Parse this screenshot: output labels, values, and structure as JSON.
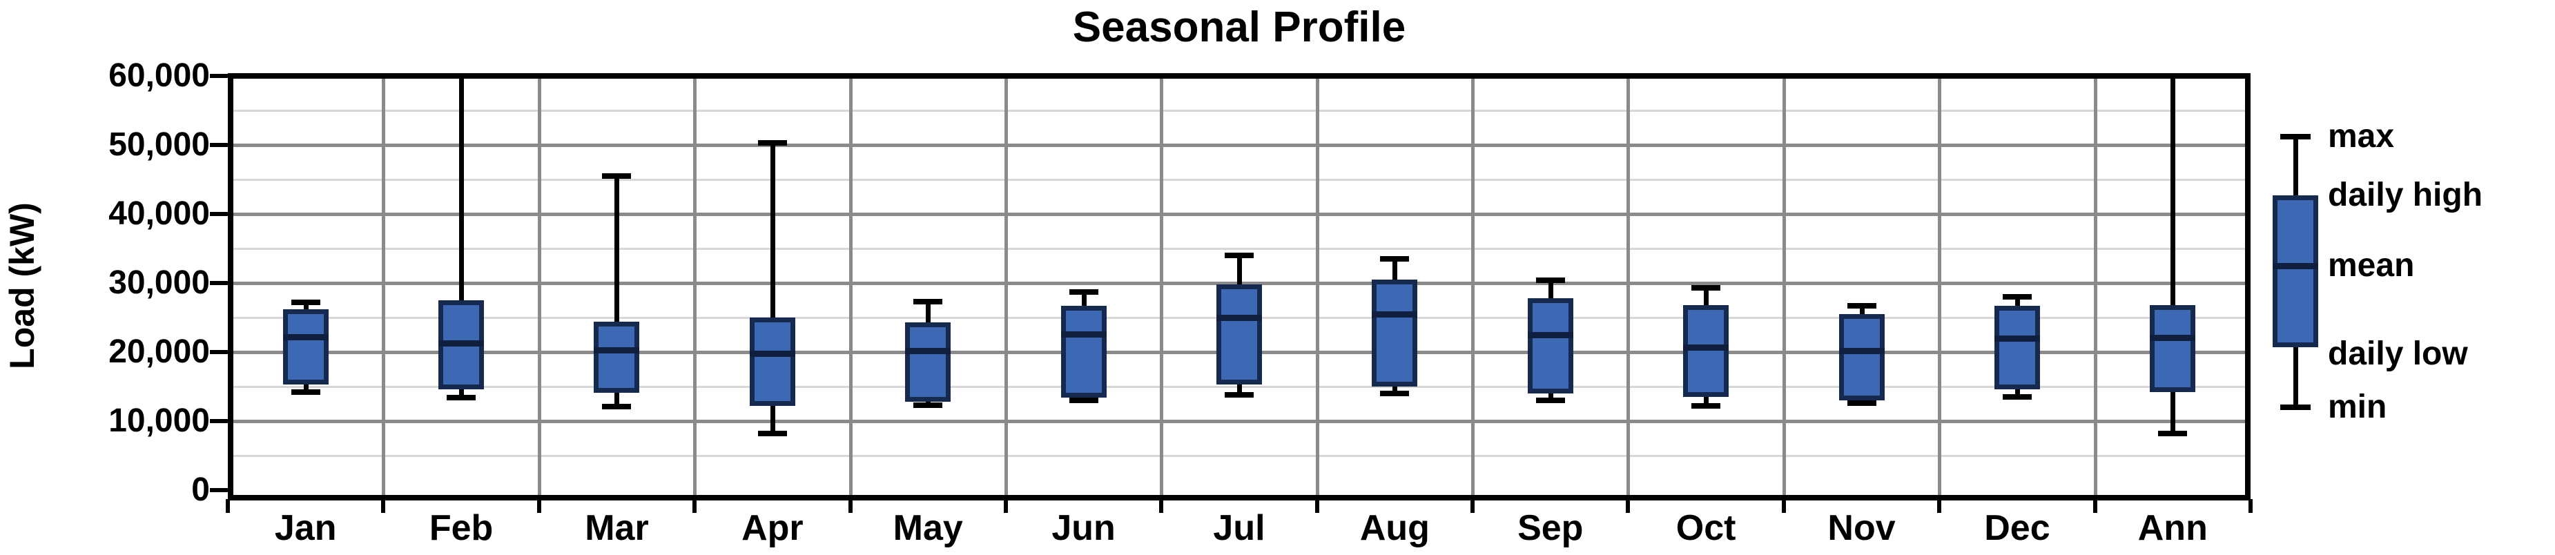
{
  "title": "Seasonal Profile",
  "y_axis": {
    "label": "Load (kW)",
    "ticks": [
      {
        "label": "60,000",
        "value": 60000
      },
      {
        "label": "50,000",
        "value": 50000
      },
      {
        "label": "40,000",
        "value": 40000
      },
      {
        "label": "30,000",
        "value": 30000
      },
      {
        "label": "20,000",
        "value": 20000
      },
      {
        "label": "10,000",
        "value": 10000
      },
      {
        "label": "0",
        "value": 0
      }
    ]
  },
  "x_axis": {
    "categories": [
      "Jan",
      "Feb",
      "Mar",
      "Apr",
      "May",
      "Jun",
      "Jul",
      "Aug",
      "Sep",
      "Oct",
      "Nov",
      "Dec",
      "Ann"
    ]
  },
  "legend": {
    "items": [
      {
        "label": "max"
      },
      {
        "label": "daily high"
      },
      {
        "label": "mean"
      },
      {
        "label": "daily low"
      },
      {
        "label": "min"
      }
    ]
  },
  "colors": {
    "box_fill": "#3d69b4",
    "box_border": "#16294f",
    "mean_line": "#101f3d",
    "whisker": "#000000",
    "grid_major": "#8a8a8a",
    "grid_minor": "#d7d7d7",
    "axis": "#000000",
    "background": "#ffffff"
  },
  "chart_data": {
    "type": "boxplot",
    "title": "Seasonal Profile",
    "ylabel": "Load (kW)",
    "ylim": [
      0,
      60000
    ],
    "grid": {
      "major_step": 10000,
      "minor_step": 5000,
      "grid_on": true
    },
    "legend_position": "right",
    "whisker_roles": [
      "min",
      "daily_low",
      "mean",
      "daily_high",
      "max"
    ],
    "categories": [
      "Jan",
      "Feb",
      "Mar",
      "Apr",
      "May",
      "Jun",
      "Jul",
      "Aug",
      "Sep",
      "Oct",
      "Nov",
      "Dec",
      "Ann"
    ],
    "boxes": [
      {
        "label": "Jan",
        "min": 14200,
        "daily_low": 15300,
        "mean": 22200,
        "daily_high": 26200,
        "max": 27200
      },
      {
        "label": "Feb",
        "min": 13400,
        "daily_low": 14600,
        "mean": 21300,
        "daily_high": 27500,
        "max": 60000,
        "max_clipped_at_axis_top": true
      },
      {
        "label": "Mar",
        "min": 12100,
        "daily_low": 14100,
        "mean": 20300,
        "daily_high": 24400,
        "max": 45500
      },
      {
        "label": "Apr",
        "min": 8200,
        "daily_low": 12200,
        "mean": 19800,
        "daily_high": 25000,
        "max": 50300
      },
      {
        "label": "May",
        "min": 12300,
        "daily_low": 12800,
        "mean": 20200,
        "daily_high": 24300,
        "max": 27300
      },
      {
        "label": "Jun",
        "min": 13000,
        "daily_low": 13400,
        "mean": 22600,
        "daily_high": 26700,
        "max": 28700
      },
      {
        "label": "Jul",
        "min": 13800,
        "daily_low": 15300,
        "mean": 25000,
        "daily_high": 29800,
        "max": 34000
      },
      {
        "label": "Aug",
        "min": 14000,
        "daily_low": 15000,
        "mean": 25500,
        "daily_high": 30500,
        "max": 33500
      },
      {
        "label": "Sep",
        "min": 13000,
        "daily_low": 14000,
        "mean": 22500,
        "daily_high": 27800,
        "max": 30400
      },
      {
        "label": "Oct",
        "min": 12200,
        "daily_low": 13500,
        "mean": 20700,
        "daily_high": 26800,
        "max": 29300
      },
      {
        "label": "Nov",
        "min": 12600,
        "daily_low": 13000,
        "mean": 20200,
        "daily_high": 25500,
        "max": 26700
      },
      {
        "label": "Dec",
        "min": 13500,
        "daily_low": 14600,
        "mean": 22000,
        "daily_high": 26700,
        "max": 28000
      },
      {
        "label": "Ann",
        "min": 8200,
        "daily_low": 14200,
        "mean": 22100,
        "daily_high": 26800,
        "max": 60000,
        "max_clipped_at_axis_top": true
      }
    ]
  }
}
